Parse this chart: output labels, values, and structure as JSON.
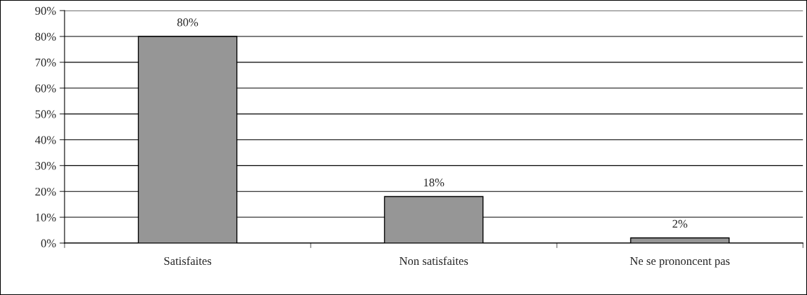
{
  "chart_data": {
    "type": "bar",
    "categories": [
      "Satisfaites",
      "Non satisfaites",
      "Ne se prononcent pas"
    ],
    "values": [
      80,
      18,
      2
    ],
    "value_labels": [
      "80%",
      "18%",
      "2%"
    ],
    "color": "#969696",
    "ylim": [
      0,
      90
    ],
    "yticks": [
      {
        "value": 0,
        "label": "0%"
      },
      {
        "value": 10,
        "label": "10%"
      },
      {
        "value": 20,
        "label": "20%"
      },
      {
        "value": 30,
        "label": "30%"
      },
      {
        "value": 40,
        "label": "40%"
      },
      {
        "value": 50,
        "label": "50%"
      },
      {
        "value": 60,
        "label": "60%"
      },
      {
        "value": 70,
        "label": "70%"
      },
      {
        "value": 80,
        "label": "80%"
      },
      {
        "value": 90,
        "label": "90%"
      }
    ],
    "grid": "y",
    "legend": false
  }
}
